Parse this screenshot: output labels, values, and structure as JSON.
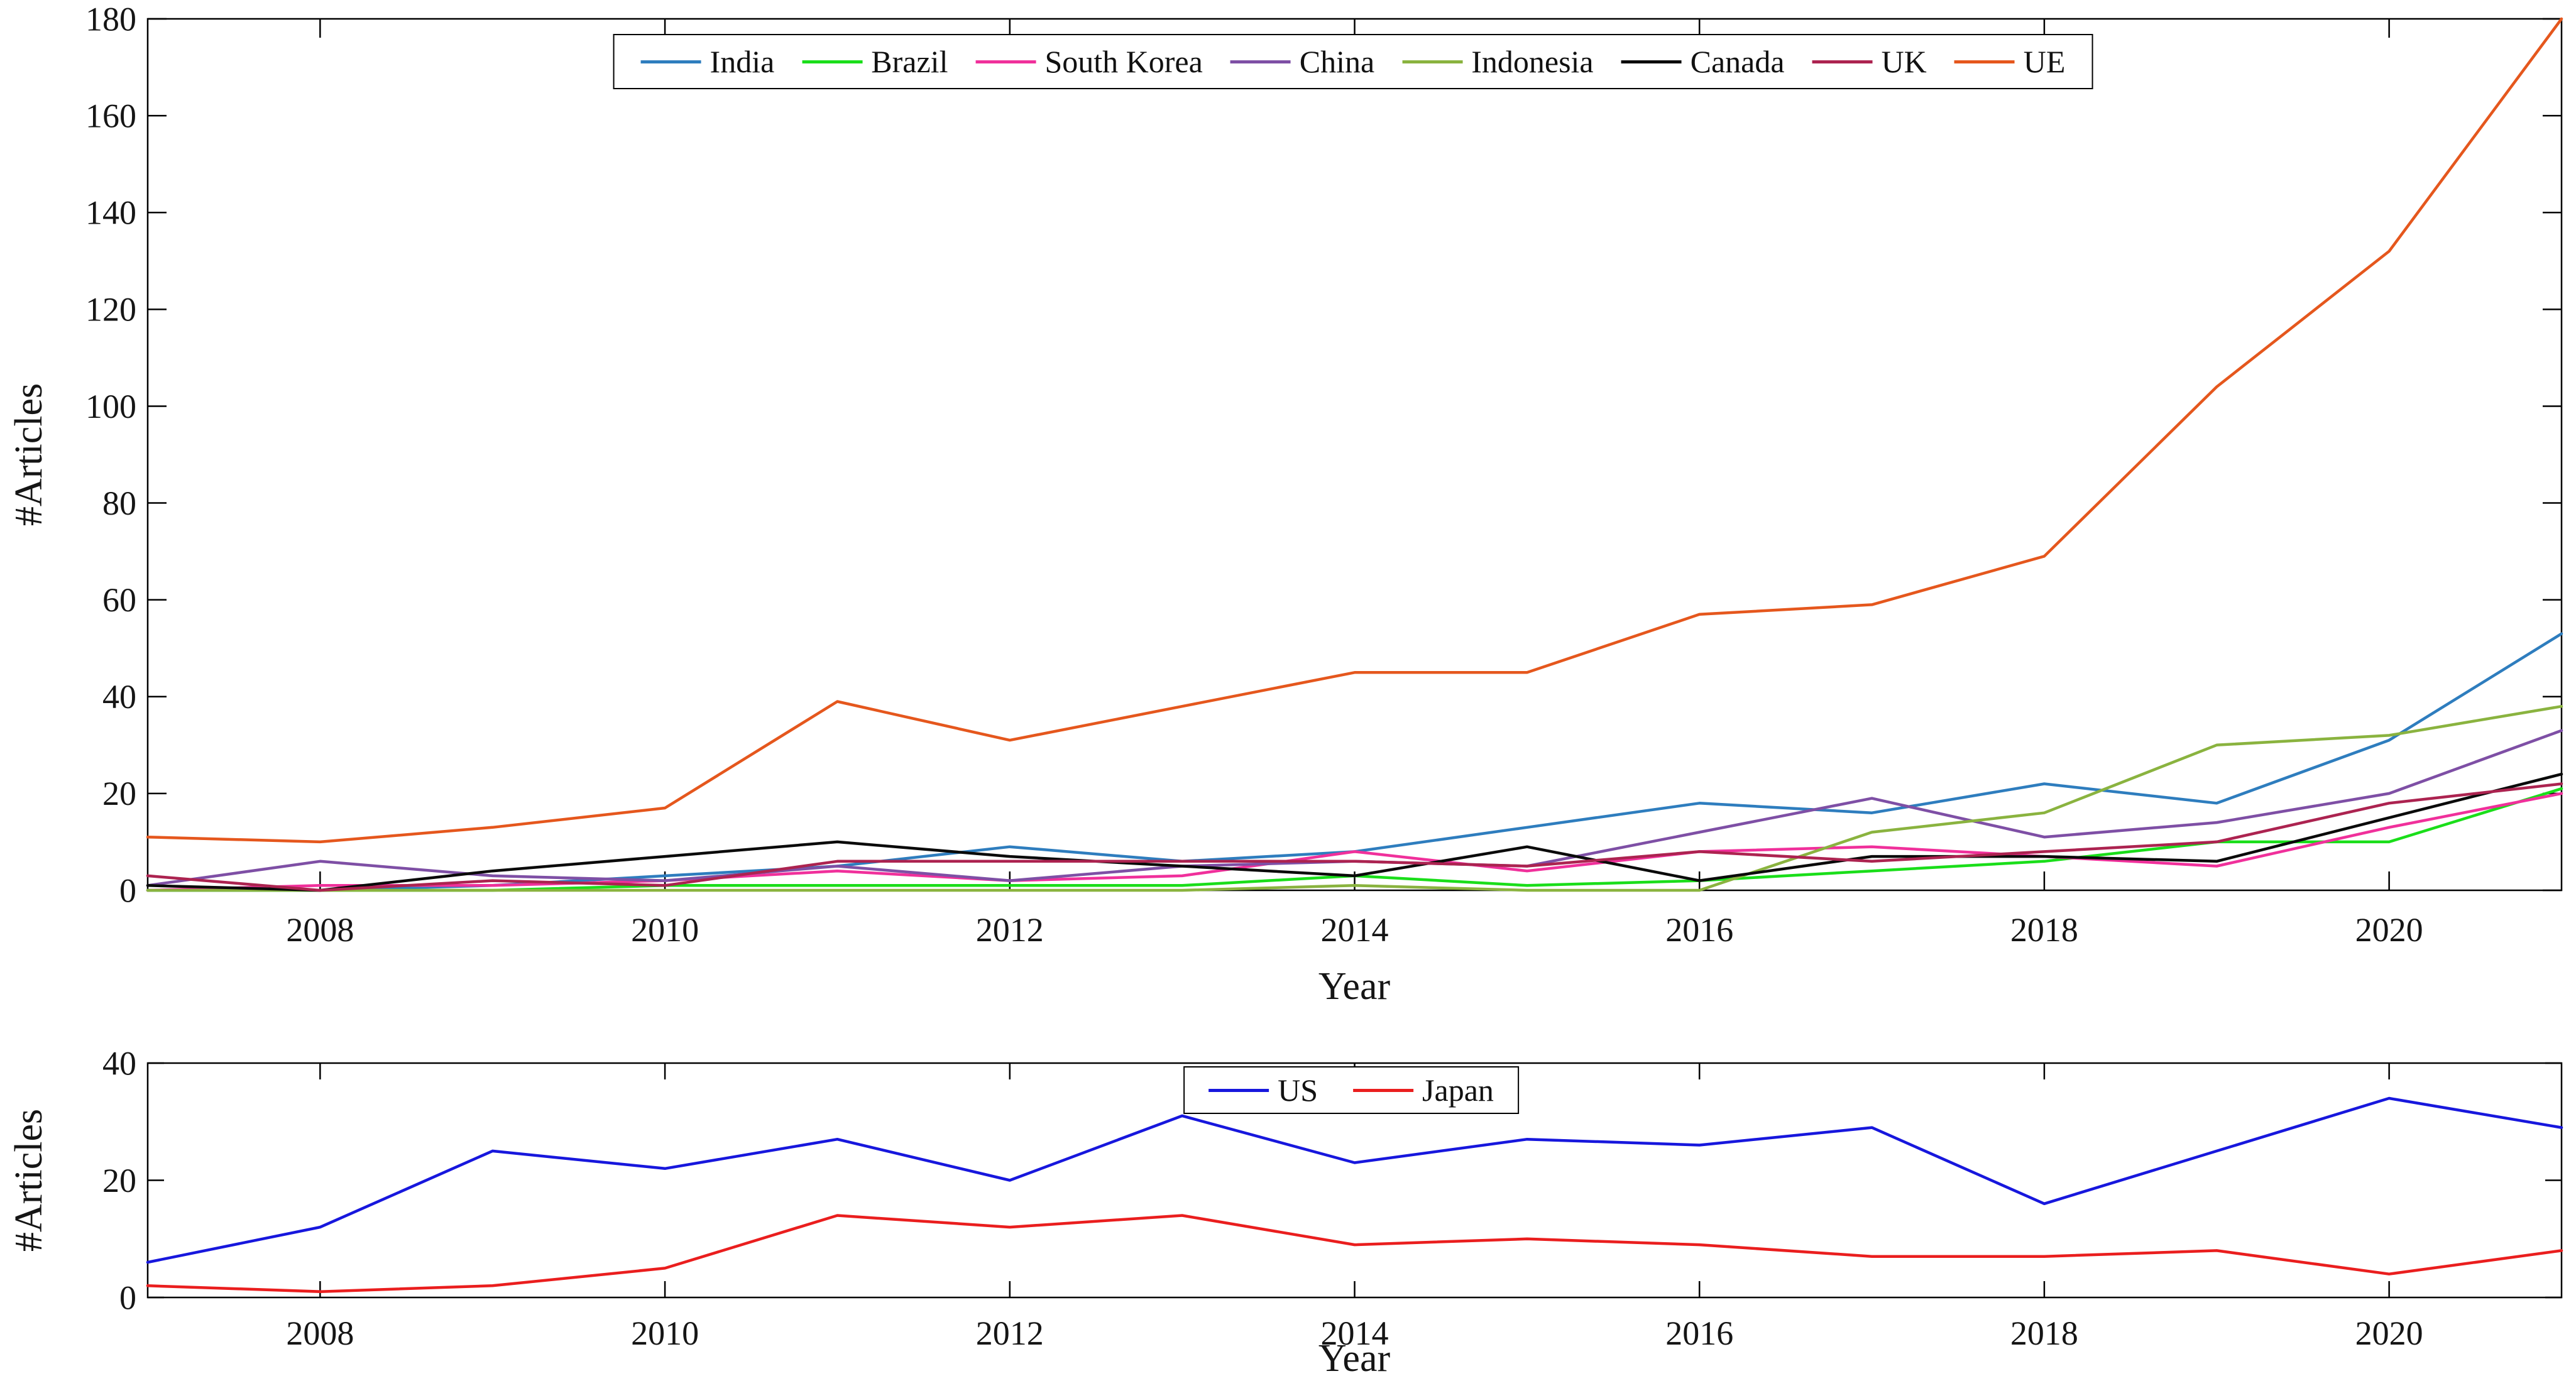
{
  "figure": {
    "background": "#ffffff",
    "text_color": "#151515",
    "axis_color": "#000000"
  },
  "chart_data": [
    {
      "type": "line",
      "title": "",
      "xlabel": "Year",
      "ylabel": "#Articles",
      "grid": false,
      "legend_position": "top-center-inside",
      "xlim": [
        2007,
        2021
      ],
      "ylim": [
        0,
        180
      ],
      "xticks": [
        2008,
        2010,
        2012,
        2014,
        2016,
        2018,
        2020
      ],
      "yticks": [
        0,
        20,
        40,
        60,
        80,
        100,
        120,
        140,
        160,
        180
      ],
      "x": [
        2007,
        2008,
        2009,
        2010,
        2011,
        2012,
        2013,
        2014,
        2015,
        2016,
        2017,
        2018,
        2019,
        2020,
        2021
      ],
      "series": [
        {
          "name": "India",
          "color": "#2e7dbe",
          "values": [
            0,
            0,
            1,
            3,
            5,
            9,
            6,
            8,
            13,
            18,
            16,
            22,
            18,
            31,
            53
          ]
        },
        {
          "name": "Brazil",
          "color": "#1ade1a",
          "values": [
            0,
            0,
            0,
            1,
            1,
            1,
            1,
            3,
            1,
            2,
            4,
            6,
            10,
            10,
            21
          ]
        },
        {
          "name": "South Korea",
          "color": "#f0309b",
          "values": [
            0,
            1,
            1,
            2,
            4,
            2,
            3,
            8,
            4,
            8,
            9,
            7,
            5,
            13,
            20
          ]
        },
        {
          "name": "China",
          "color": "#7e4fa5",
          "values": [
            1,
            6,
            3,
            2,
            5,
            2,
            5,
            6,
            5,
            12,
            19,
            11,
            14,
            20,
            33
          ]
        },
        {
          "name": "Indonesia",
          "color": "#8ab33f",
          "values": [
            0,
            0,
            0,
            0,
            0,
            0,
            0,
            1,
            0,
            0,
            12,
            16,
            30,
            32,
            38
          ]
        },
        {
          "name": "Canada",
          "color": "#0a0a0a",
          "values": [
            1,
            0,
            4,
            7,
            10,
            7,
            5,
            3,
            9,
            2,
            7,
            7,
            6,
            15,
            24
          ]
        },
        {
          "name": "UK",
          "color": "#ac2350",
          "values": [
            3,
            0,
            2,
            1,
            6,
            6,
            6,
            6,
            5,
            8,
            6,
            8,
            10,
            18,
            22
          ]
        },
        {
          "name": "UE",
          "color": "#e5571d",
          "values": [
            11,
            10,
            13,
            17,
            39,
            31,
            38,
            45,
            45,
            57,
            59,
            69,
            104,
            132,
            180
          ]
        }
      ]
    },
    {
      "type": "line",
      "title": "",
      "xlabel": "Year",
      "ylabel": "#Articles",
      "grid": false,
      "legend_position": "top-center-inside",
      "xlim": [
        2007,
        2021
      ],
      "ylim": [
        0,
        40
      ],
      "xticks": [
        2008,
        2010,
        2012,
        2014,
        2016,
        2018,
        2020
      ],
      "yticks": [
        0,
        20,
        40
      ],
      "x": [
        2007,
        2008,
        2009,
        2010,
        2011,
        2012,
        2013,
        2014,
        2015,
        2016,
        2017,
        2018,
        2019,
        2020,
        2021
      ],
      "series": [
        {
          "name": "US",
          "color": "#1717dd",
          "values": [
            6,
            12,
            25,
            22,
            27,
            20,
            31,
            23,
            27,
            26,
            29,
            16,
            25,
            34,
            29
          ]
        },
        {
          "name": "Japan",
          "color": "#ea1e1e",
          "values": [
            2,
            1,
            2,
            5,
            14,
            12,
            14,
            9,
            10,
            9,
            7,
            7,
            8,
            4,
            8
          ]
        }
      ]
    }
  ]
}
